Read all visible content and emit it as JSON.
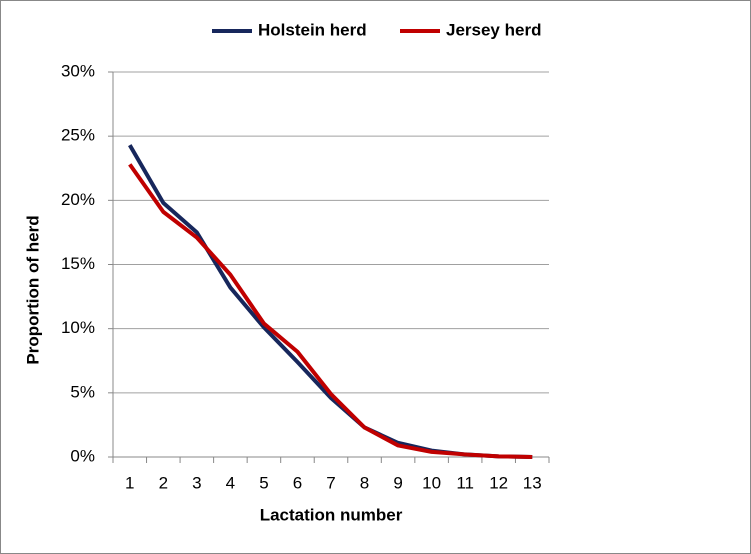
{
  "chart_data": {
    "type": "line",
    "categories": [
      "1",
      "2",
      "3",
      "4",
      "5",
      "6",
      "7",
      "8",
      "9",
      "10",
      "11",
      "12",
      "13"
    ],
    "series": [
      {
        "name": "Holstein herd",
        "color": "#17275c",
        "values": [
          24.3,
          19.8,
          17.5,
          13.2,
          10.1,
          7.4,
          4.6,
          2.3,
          1.1,
          0.5,
          0.2,
          0.05,
          0
        ]
      },
      {
        "name": "Jersey herd",
        "color": "#c00000",
        "values": [
          22.8,
          19.1,
          17.1,
          14.2,
          10.4,
          8.2,
          4.9,
          2.3,
          0.9,
          0.4,
          0.2,
          0.05,
          0
        ]
      }
    ],
    "ylim": [
      0,
      30
    ],
    "yticks": [
      {
        "value": 0,
        "label": "0%"
      },
      {
        "value": 5,
        "label": "5%"
      },
      {
        "value": 10,
        "label": "10%"
      },
      {
        "value": 15,
        "label": "15%"
      },
      {
        "value": 20,
        "label": "20%"
      },
      {
        "value": 25,
        "label": "25%"
      },
      {
        "value": 30,
        "label": "30%"
      }
    ],
    "grid": true,
    "legend": "top",
    "xlabel": "Lactation number",
    "ylabel": "Proportion of herd"
  }
}
